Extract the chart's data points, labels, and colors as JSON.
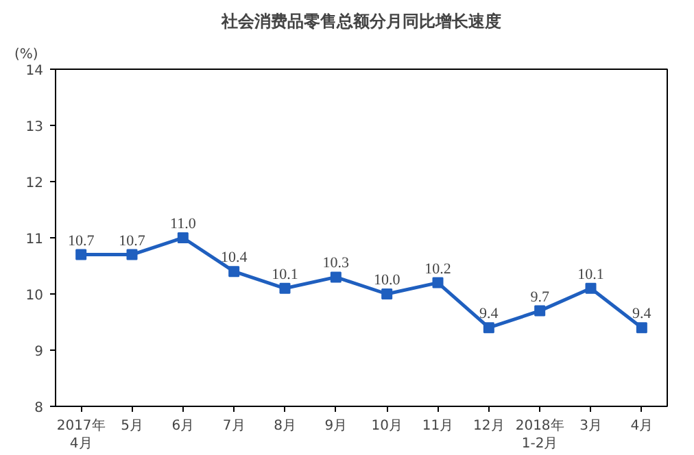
{
  "chart_data": {
    "type": "line",
    "title": "社会消费品零售总额分月同比增长速度",
    "ylabel": "(%)",
    "categories": [
      "2017年\n4月",
      "5月",
      "6月",
      "7月",
      "8月",
      "9月",
      "10月",
      "11月",
      "12月",
      "2018年\n1-2月",
      "3月",
      "4月"
    ],
    "series": [
      {
        "color": "#1f5fbf",
        "values": [
          10.7,
          10.7,
          11.0,
          10.4,
          10.1,
          10.3,
          10.0,
          10.2,
          9.4,
          9.7,
          10.1,
          9.4
        ],
        "value_labels": [
          "10.7",
          "10.7",
          "11.0",
          "10.4",
          "10.1",
          "10.3",
          "10.0",
          "10.2",
          "9.4",
          "9.7",
          "10.1",
          "9.4"
        ]
      }
    ],
    "ylim": [
      8,
      14
    ],
    "yticks": [
      8,
      9,
      10,
      11,
      12,
      13,
      14
    ],
    "grid": false,
    "marker": "square",
    "line_style": "solid"
  }
}
